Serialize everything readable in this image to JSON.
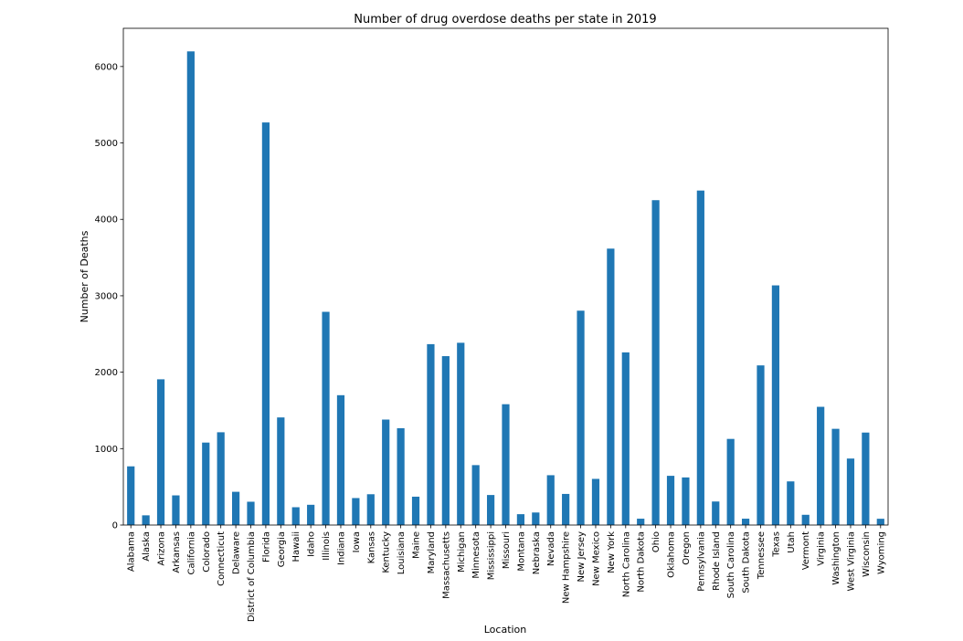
{
  "chart_data": {
    "type": "bar",
    "title": "Number of drug overdose deaths per state in 2019",
    "xlabel": "Location",
    "ylabel": "Number of Deaths",
    "ylim": [
      0,
      6500
    ],
    "yticks": [
      0,
      1000,
      2000,
      3000,
      4000,
      5000,
      6000
    ],
    "grid": false,
    "legend": "none",
    "bar_color": "#1f77b4",
    "categories": [
      "Alabama",
      "Alaska",
      "Arizona",
      "Arkansas",
      "California",
      "Colorado",
      "Connecticut",
      "Delaware",
      "District of Columbia",
      "Florida",
      "Georgia",
      "Hawaii",
      "Idaho",
      "Illinois",
      "Indiana",
      "Iowa",
      "Kansas",
      "Kentucky",
      "Louisiana",
      "Maine",
      "Maryland",
      "Massachusetts",
      "Michigan",
      "Minnesota",
      "Mississippi",
      "Missouri",
      "Montana",
      "Nebraska",
      "Nevada",
      "New Hampshire",
      "New Jersey",
      "New Mexico",
      "New York",
      "North Carolina",
      "North Dakota",
      "Ohio",
      "Oklahoma",
      "Oregon",
      "Pennsylvania",
      "Rhode Island",
      "South Carolina",
      "South Dakota",
      "Tennessee",
      "Texas",
      "Utah",
      "Vermont",
      "Virginia",
      "Washington",
      "West Virginia",
      "Wisconsin",
      "Wyoming"
    ],
    "values": [
      768,
      127,
      1907,
      388,
      6198,
      1079,
      1214,
      435,
      305,
      5268,
      1408,
      233,
      265,
      2790,
      1699,
      353,
      403,
      1380,
      1267,
      371,
      2367,
      2210,
      2385,
      784,
      393,
      1581,
      142,
      164,
      652,
      407,
      2805,
      604,
      3617,
      2259,
      83,
      4251,
      644,
      623,
      4377,
      308,
      1127,
      83,
      2089,
      3136,
      571,
      134,
      1547,
      1259,
      870,
      1210,
      82
    ]
  }
}
